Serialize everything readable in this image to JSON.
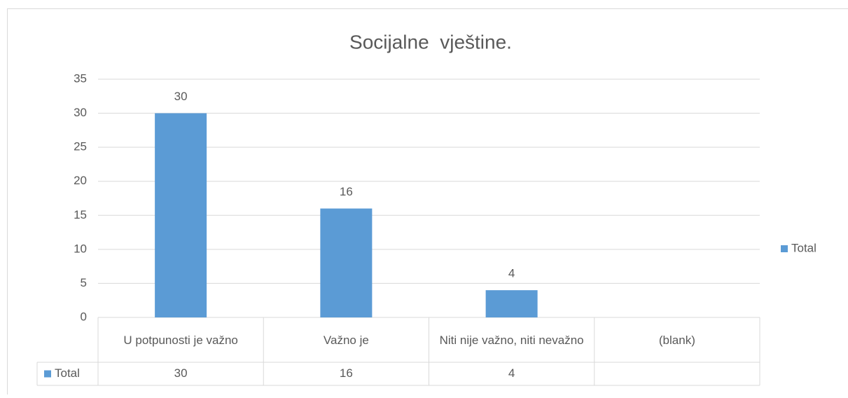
{
  "chart_data": {
    "type": "bar",
    "title": "Socijalne  vještine.",
    "categories": [
      "U potpunosti je važno",
      "Važno je",
      "Niti nije važno, niti nevažno",
      "(blank)"
    ],
    "series": [
      {
        "name": "Total",
        "color": "#5b9bd5",
        "values": [
          30,
          16,
          4,
          null
        ]
      }
    ],
    "ylim": [
      0,
      35
    ],
    "yticks": [
      0,
      5,
      10,
      15,
      20,
      25,
      30,
      35
    ],
    "grid": true,
    "legend": "right",
    "data_table": true
  }
}
